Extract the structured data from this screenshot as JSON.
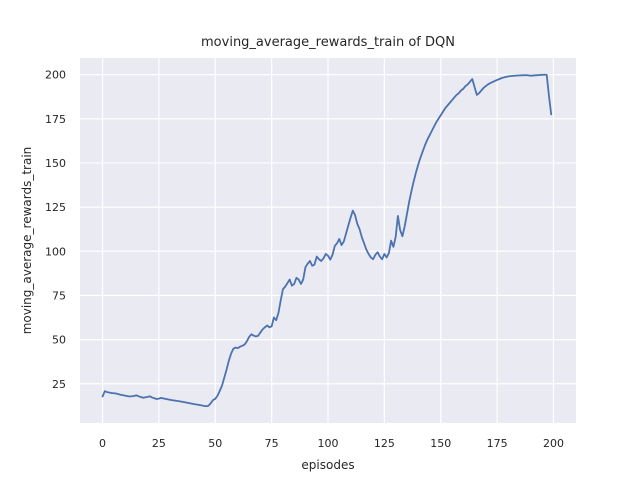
{
  "chart_data": {
    "type": "line",
    "title": "moving_average_rewards_train of DQN",
    "xlabel": "episodes",
    "ylabel": "moving_average_rewards_train",
    "x_ticks": [
      0,
      25,
      50,
      75,
      100,
      125,
      150,
      175,
      200
    ],
    "y_ticks": [
      25,
      50,
      75,
      100,
      125,
      150,
      175,
      200
    ],
    "xlim": [
      -10,
      210
    ],
    "ylim": [
      2.8,
      209.4
    ],
    "grid": true,
    "legend_position": "none",
    "style": {
      "figure_background": "#ffffff",
      "plot_background": "#eaeaf2",
      "grid_color": "#ffffff",
      "line_color": "#4c72b0",
      "text_color": "#262626"
    },
    "series": [
      {
        "name": "moving_average_rewards_train",
        "points": [
          [
            0,
            17.8
          ],
          [
            1,
            20.8
          ],
          [
            2,
            20.3
          ],
          [
            4,
            19.8
          ],
          [
            6,
            19.5
          ],
          [
            8,
            18.8
          ],
          [
            10,
            18.3
          ],
          [
            12,
            17.8
          ],
          [
            14,
            18.1
          ],
          [
            15,
            18.5
          ],
          [
            16,
            17.9
          ],
          [
            18,
            17.1
          ],
          [
            20,
            17.6
          ],
          [
            21,
            17.9
          ],
          [
            22,
            17.2
          ],
          [
            24,
            16.4
          ],
          [
            25,
            16.6
          ],
          [
            26,
            17.0
          ],
          [
            27,
            16.7
          ],
          [
            29,
            16.2
          ],
          [
            31,
            15.7
          ],
          [
            33,
            15.3
          ],
          [
            35,
            14.9
          ],
          [
            37,
            14.4
          ],
          [
            39,
            13.9
          ],
          [
            41,
            13.4
          ],
          [
            43,
            13.0
          ],
          [
            45,
            12.5
          ],
          [
            46,
            12.3
          ],
          [
            47,
            12.6
          ],
          [
            48,
            14.0
          ],
          [
            49,
            15.8
          ],
          [
            50,
            16.5
          ],
          [
            51,
            18.3
          ],
          [
            52,
            21.0
          ],
          [
            53,
            24.0
          ],
          [
            54,
            28.5
          ],
          [
            55,
            33.0
          ],
          [
            56,
            38.0
          ],
          [
            57,
            42.0
          ],
          [
            58,
            44.8
          ],
          [
            59,
            45.5
          ],
          [
            60,
            45.2
          ],
          [
            61,
            46.0
          ],
          [
            62,
            46.5
          ],
          [
            63,
            47.2
          ],
          [
            64,
            49.0
          ],
          [
            65,
            51.5
          ],
          [
            66,
            53.0
          ],
          [
            67,
            52.3
          ],
          [
            68,
            51.8
          ],
          [
            69,
            52.2
          ],
          [
            70,
            54.0
          ],
          [
            71,
            55.8
          ],
          [
            72,
            57.0
          ],
          [
            73,
            58.0
          ],
          [
            74,
            57.0
          ],
          [
            75,
            57.5
          ],
          [
            76,
            62.5
          ],
          [
            77,
            61.0
          ],
          [
            78,
            65.0
          ],
          [
            79,
            72.0
          ],
          [
            80,
            78.5
          ],
          [
            81,
            80.0
          ],
          [
            82,
            82.0
          ],
          [
            83,
            84.0
          ],
          [
            84,
            80.5
          ],
          [
            85,
            81.5
          ],
          [
            86,
            85.0
          ],
          [
            87,
            84.0
          ],
          [
            88,
            81.5
          ],
          [
            89,
            84.0
          ],
          [
            90,
            91.0
          ],
          [
            91,
            93.0
          ],
          [
            92,
            94.5
          ],
          [
            93,
            91.8
          ],
          [
            94,
            92.5
          ],
          [
            95,
            97.0
          ],
          [
            96,
            95.5
          ],
          [
            97,
            94.5
          ],
          [
            98,
            96.0
          ],
          [
            99,
            98.5
          ],
          [
            100,
            97.5
          ],
          [
            101,
            95.3
          ],
          [
            102,
            98.0
          ],
          [
            103,
            103.0
          ],
          [
            104,
            104.5
          ],
          [
            105,
            107.0
          ],
          [
            106,
            103.5
          ],
          [
            107,
            105.5
          ],
          [
            108,
            110.0
          ],
          [
            109,
            114.5
          ],
          [
            110,
            119.0
          ],
          [
            111,
            123.0
          ],
          [
            112,
            120.5
          ],
          [
            113,
            115.5
          ],
          [
            114,
            112.5
          ],
          [
            115,
            108.0
          ],
          [
            116,
            104.5
          ],
          [
            117,
            101.0
          ],
          [
            118,
            98.5
          ],
          [
            119,
            96.5
          ],
          [
            120,
            95.5
          ],
          [
            121,
            98.0
          ],
          [
            122,
            99.5
          ],
          [
            123,
            97.0
          ],
          [
            124,
            95.5
          ],
          [
            125,
            98.5
          ],
          [
            126,
            96.5
          ],
          [
            127,
            99.0
          ],
          [
            128,
            106.0
          ],
          [
            129,
            102.5
          ],
          [
            130,
            108.0
          ],
          [
            131,
            120.0
          ],
          [
            132,
            112.0
          ],
          [
            133,
            108.5
          ],
          [
            134,
            114.0
          ],
          [
            135,
            121.0
          ],
          [
            136,
            128.0
          ],
          [
            137,
            134.0
          ],
          [
            138,
            139.5
          ],
          [
            139,
            144.5
          ],
          [
            140,
            149.0
          ],
          [
            141,
            153.0
          ],
          [
            142,
            156.5
          ],
          [
            143,
            160.0
          ],
          [
            144,
            163.0
          ],
          [
            145,
            165.5
          ],
          [
            146,
            168.0
          ],
          [
            147,
            170.5
          ],
          [
            148,
            173.0
          ],
          [
            149,
            175.0
          ],
          [
            150,
            177.0
          ],
          [
            151,
            179.0
          ],
          [
            152,
            181.0
          ],
          [
            153,
            182.5
          ],
          [
            154,
            184.0
          ],
          [
            155,
            185.5
          ],
          [
            156,
            187.0
          ],
          [
            157,
            188.5
          ],
          [
            158,
            189.5
          ],
          [
            159,
            191.0
          ],
          [
            160,
            192.0
          ],
          [
            161,
            193.5
          ],
          [
            162,
            194.5
          ],
          [
            163,
            196.0
          ],
          [
            164,
            197.5
          ],
          [
            165,
            193.0
          ],
          [
            166,
            188.5
          ],
          [
            167,
            189.5
          ],
          [
            168,
            191.0
          ],
          [
            169,
            192.5
          ],
          [
            170,
            193.5
          ],
          [
            171,
            194.5
          ],
          [
            172,
            195.2
          ],
          [
            173,
            195.8
          ],
          [
            174,
            196.4
          ],
          [
            175,
            197.0
          ],
          [
            176,
            197.5
          ],
          [
            177,
            198.0
          ],
          [
            178,
            198.4
          ],
          [
            179,
            198.7
          ],
          [
            180,
            199.0
          ],
          [
            182,
            199.3
          ],
          [
            184,
            199.5
          ],
          [
            186,
            199.6
          ],
          [
            188,
            199.7
          ],
          [
            190,
            199.4
          ],
          [
            192,
            199.6
          ],
          [
            194,
            199.8
          ],
          [
            196,
            199.9
          ],
          [
            197,
            199.9
          ],
          [
            198,
            188.0
          ],
          [
            199,
            177.5
          ]
        ]
      }
    ]
  }
}
